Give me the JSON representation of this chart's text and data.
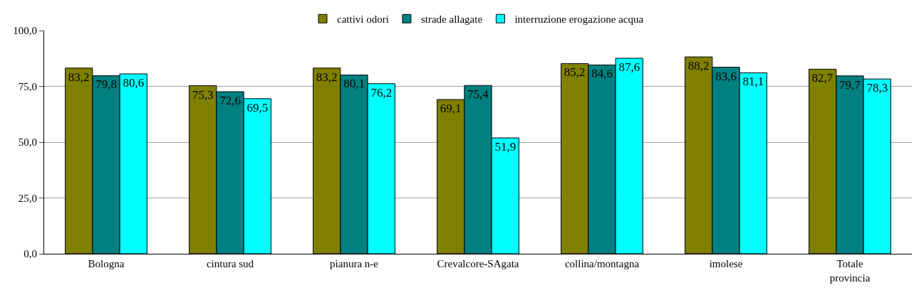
{
  "chart_data": {
    "type": "bar",
    "categories": [
      "Bologna",
      "cintura sud",
      "pianura n-e",
      "Crevalcore-SAgata",
      "collina/montagna",
      "imolese",
      "Totale provincia"
    ],
    "series": [
      {
        "name": "cattivi odori",
        "color": "#808000",
        "values": [
          83.2,
          75.3,
          83.2,
          69.1,
          85.2,
          88.2,
          82.7
        ],
        "value_labels": [
          "83,2",
          "75,3",
          "83,2",
          "69,1",
          "85,2",
          "88,2",
          "82,7"
        ]
      },
      {
        "name": "strade allagate",
        "color": "#008080",
        "values": [
          79.8,
          72.6,
          80.1,
          75.4,
          84.6,
          83.6,
          79.7
        ],
        "value_labels": [
          "79,8",
          "72,6",
          "80,1",
          "75,4",
          "84,6",
          "83,6",
          "79,7"
        ]
      },
      {
        "name": "interruzione erogazione acqua",
        "color": "#00ffff",
        "values": [
          80.6,
          69.5,
          76.2,
          51.9,
          87.6,
          81.1,
          78.3
        ],
        "value_labels": [
          "80,6",
          "69,5",
          "76,2",
          "51,9",
          "87,6",
          "81,1",
          "78,3"
        ]
      }
    ],
    "ylim": [
      0,
      100
    ],
    "yticks": [
      {
        "value": 0,
        "label": "0,0"
      },
      {
        "value": 25,
        "label": "25,0"
      },
      {
        "value": 50,
        "label": "50,0"
      },
      {
        "value": 75,
        "label": "75,0"
      },
      {
        "value": 100,
        "label": "100,0"
      }
    ],
    "grid": "y",
    "legend": "top"
  }
}
